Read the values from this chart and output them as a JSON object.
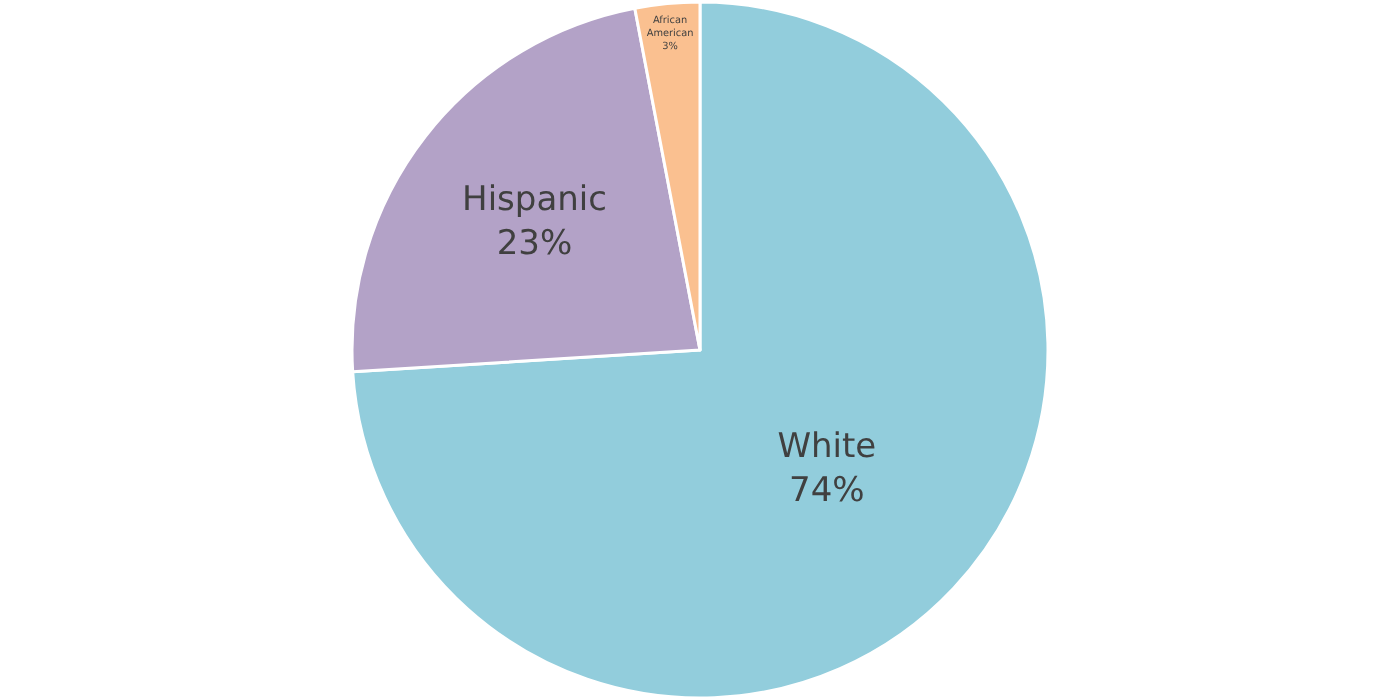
{
  "chart_data": {
    "type": "pie",
    "categories": [
      "White",
      "Hispanic",
      "African American"
    ],
    "values": [
      74,
      23,
      3
    ],
    "value_labels": [
      "74%",
      "23%",
      "3%"
    ],
    "colors": [
      "#92cddc",
      "#b3a2c7",
      "#fac090"
    ],
    "legend": false
  }
}
